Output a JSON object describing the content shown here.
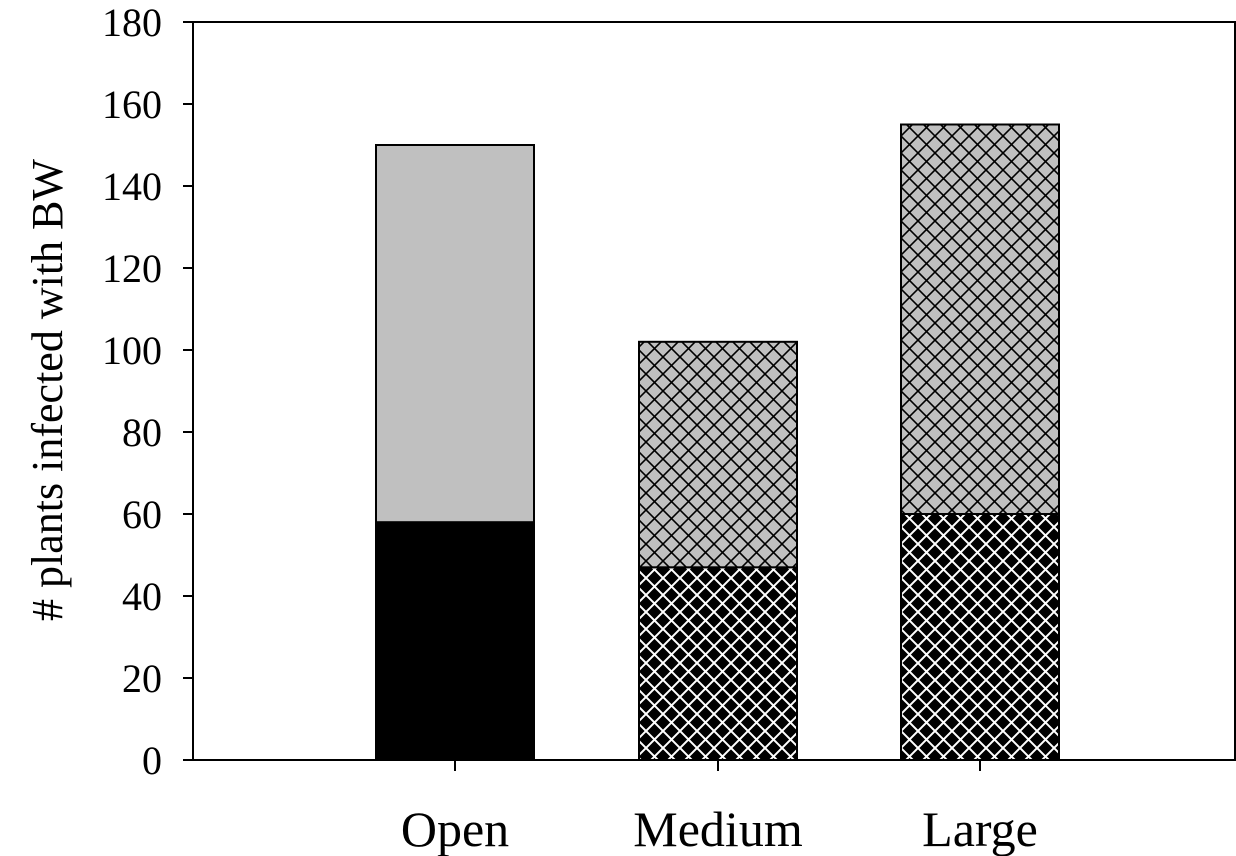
{
  "chart_data": {
    "type": "bar",
    "stacked": true,
    "categories": [
      "Open",
      "Medium",
      "Large"
    ],
    "series": [
      {
        "values": [
          58,
          47,
          60
        ],
        "color": "#000000"
      },
      {
        "values": [
          92,
          55,
          95
        ],
        "color": "#c0c0c0"
      }
    ],
    "patterns": [
      "none",
      "crosshatch",
      "crosshatch"
    ],
    "ylabel": "# plants infected with BW",
    "xlabel": "",
    "ylim": [
      0,
      180
    ],
    "yticks": [
      0,
      20,
      40,
      60,
      80,
      100,
      120,
      140,
      160,
      180
    ],
    "grid": false,
    "frame": "box"
  }
}
